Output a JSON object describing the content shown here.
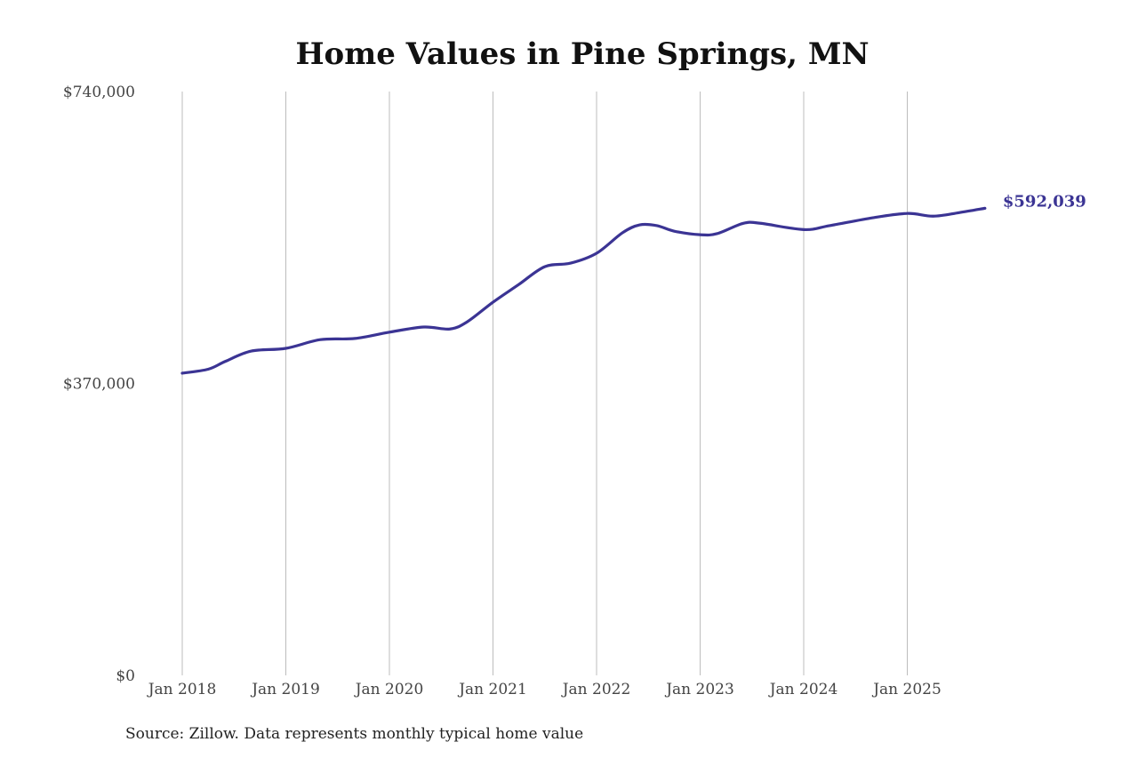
{
  "chart_data": {
    "type": "line",
    "title": "Home Values in Pine Springs, MN",
    "xlabel": "",
    "ylabel": "",
    "ylim": [
      0,
      740000
    ],
    "y_ticks": [
      {
        "value": 0,
        "label": "$0"
      },
      {
        "value": 370000,
        "label": "$370,000"
      },
      {
        "value": 740000,
        "label": "$740,000"
      }
    ],
    "x_ticks": [
      {
        "date": "2018-01",
        "label": "Jan 2018"
      },
      {
        "date": "2019-01",
        "label": "Jan 2019"
      },
      {
        "date": "2020-01",
        "label": "Jan 2020"
      },
      {
        "date": "2021-01",
        "label": "Jan 2021"
      },
      {
        "date": "2022-01",
        "label": "Jan 2022"
      },
      {
        "date": "2023-01",
        "label": "Jan 2023"
      },
      {
        "date": "2024-01",
        "label": "Jan 2024"
      },
      {
        "date": "2025-01",
        "label": "Jan 2025"
      }
    ],
    "grid": "vertical",
    "line_color": "#3b3494",
    "end_label": "$592,039",
    "series": [
      {
        "points": [
          [
            "2018-01",
            383000
          ],
          [
            "2018-04",
            388000
          ],
          [
            "2018-06",
            398000
          ],
          [
            "2018-09",
            411000
          ],
          [
            "2019-01",
            414500
          ],
          [
            "2019-05",
            425500
          ],
          [
            "2019-09",
            427000
          ],
          [
            "2020-01",
            435000
          ],
          [
            "2020-05",
            441500
          ],
          [
            "2020-08",
            439000
          ],
          [
            "2020-10",
            448000
          ],
          [
            "2021-01",
            473000
          ],
          [
            "2021-04",
            495500
          ],
          [
            "2021-07",
            518000
          ],
          [
            "2021-10",
            522500
          ],
          [
            "2022-01",
            535000
          ],
          [
            "2022-04",
            561000
          ],
          [
            "2022-06",
            571000
          ],
          [
            "2022-08",
            570000
          ],
          [
            "2022-10",
            563000
          ],
          [
            "2023-01",
            558500
          ],
          [
            "2023-03",
            560000
          ],
          [
            "2023-06",
            573000
          ],
          [
            "2023-08",
            573000
          ],
          [
            "2024-01",
            565000
          ],
          [
            "2024-04",
            570000
          ],
          [
            "2024-09",
            580000
          ],
          [
            "2025-01",
            585500
          ],
          [
            "2025-04",
            582000
          ],
          [
            "2025-07",
            586500
          ],
          [
            "2025-10",
            592039
          ]
        ]
      }
    ]
  },
  "source": "Source: Zillow. Data represents monthly typical home value"
}
